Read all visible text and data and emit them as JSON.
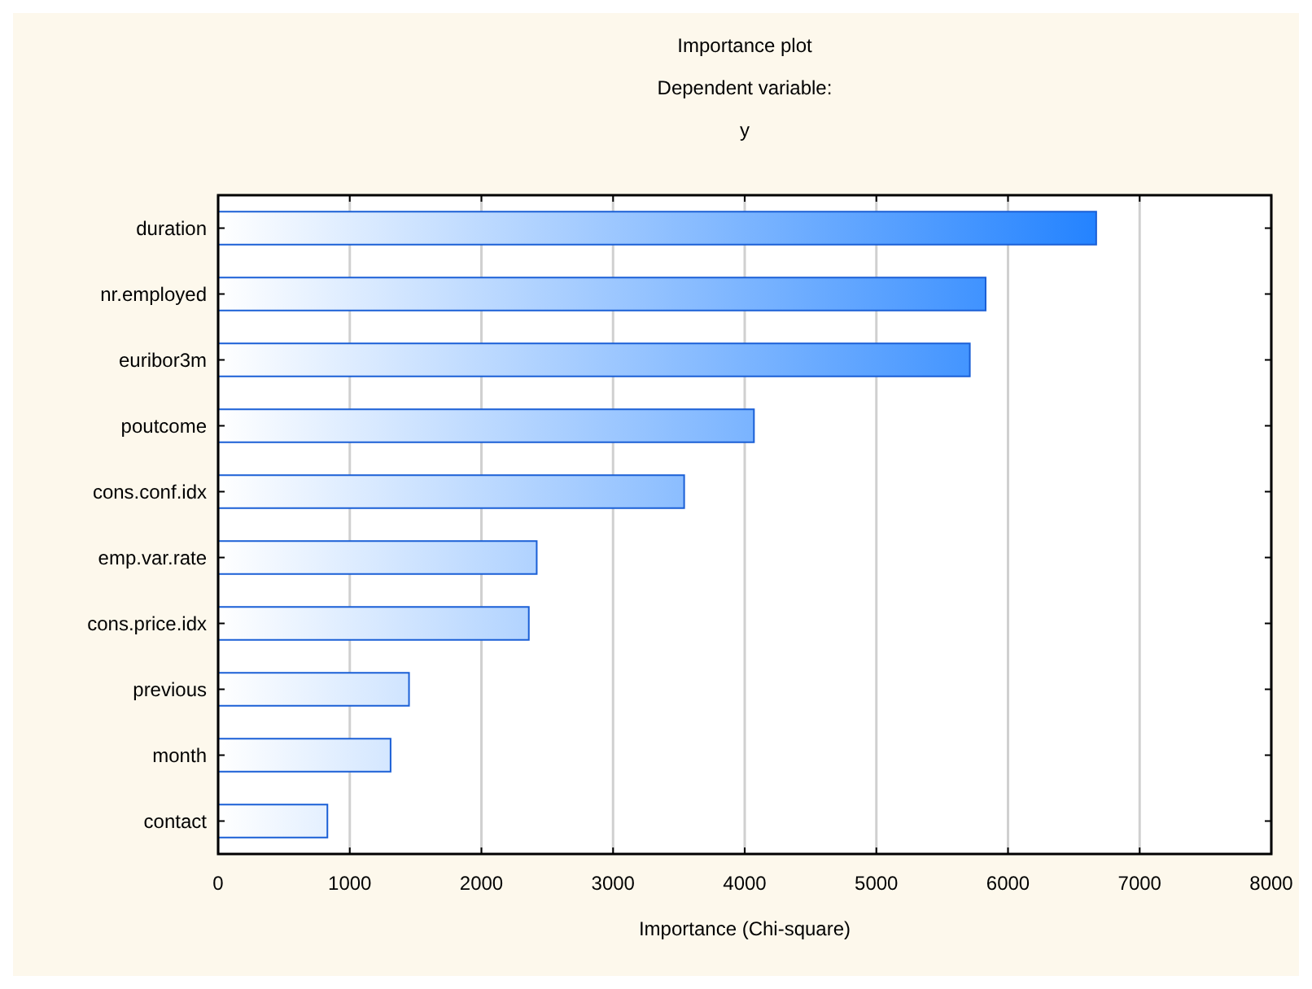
{
  "chart_data": {
    "type": "bar",
    "orientation": "horizontal",
    "title": "Importance plot",
    "subtitle": "Dependent variable:\ny",
    "xlabel": "Importance (Chi-square)",
    "categories": [
      "duration",
      "nr.employed",
      "euribor3m",
      "poutcome",
      "cons.conf.idx",
      "emp.var.rate",
      "cons.price.idx",
      "previous",
      "month",
      "contact"
    ],
    "values": [
      6670,
      5830,
      5710,
      4070,
      3540,
      2420,
      2360,
      1450,
      1310,
      830
    ],
    "color": "#1a5fd6",
    "xlim": [
      0,
      8000
    ],
    "xticks": [
      0,
      1000,
      2000,
      3000,
      4000,
      5000,
      6000,
      7000,
      8000
    ],
    "grid": "x"
  }
}
